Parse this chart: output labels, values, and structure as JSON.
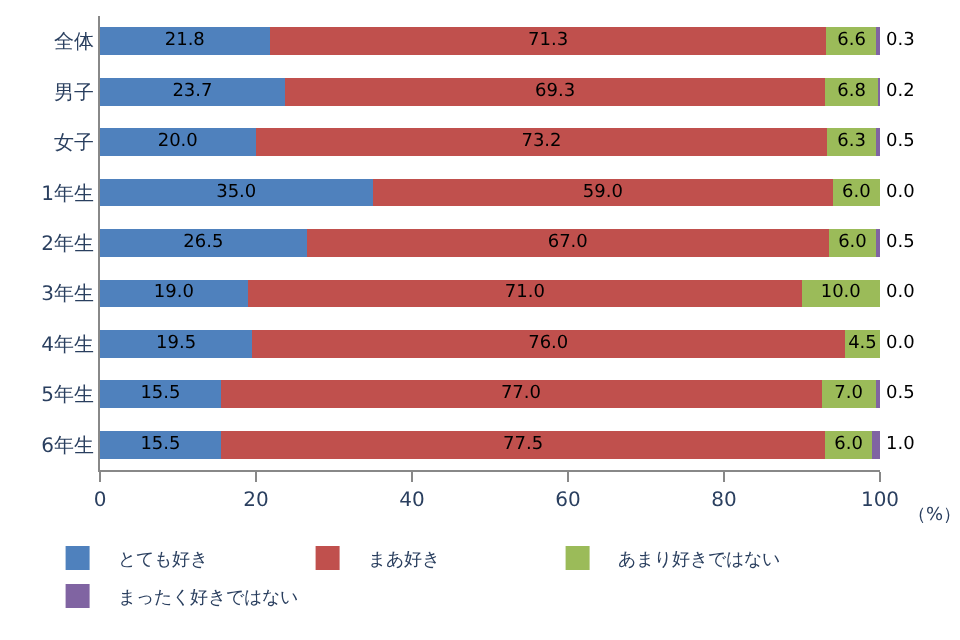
{
  "chart_data": {
    "type": "bar",
    "orientation": "horizontal",
    "stacked": true,
    "categories": [
      "全体",
      "男子",
      "女子",
      "1年生",
      "2年生",
      "3年生",
      "4年生",
      "5年生",
      "6年生"
    ],
    "series": [
      {
        "name": "とても好き",
        "color": "#4f81bd",
        "values": [
          21.8,
          23.7,
          20.0,
          35.0,
          26.5,
          19.0,
          19.5,
          15.5,
          15.5
        ],
        "value_labels": [
          "21.8",
          "23.7",
          "20.0",
          "35.0",
          "26.5",
          "19.0",
          "19.5",
          "15.5",
          "15.5"
        ]
      },
      {
        "name": "まあ好き",
        "color": "#c0504d",
        "values": [
          71.3,
          69.3,
          73.2,
          59.0,
          67.0,
          71.0,
          76.0,
          77.0,
          77.5
        ],
        "value_labels": [
          "71.3",
          "69.3",
          "73.2",
          "59.0",
          "67.0",
          "71.0",
          "76.0",
          "77.0",
          "77.5"
        ]
      },
      {
        "name": "あまり好きではない",
        "color": "#9bbb59",
        "values": [
          6.6,
          6.8,
          6.3,
          6.0,
          6.0,
          10.0,
          4.5,
          7.0,
          6.0
        ],
        "value_labels": [
          "6.6",
          "6.8",
          "6.3",
          "6.0",
          "6.0",
          "10.0",
          "4.5",
          "7.0",
          "6.0"
        ]
      },
      {
        "name": "まったく好きではない",
        "color": "#8064a2",
        "values": [
          0.3,
          0.2,
          0.5,
          0.0,
          0.5,
          0.0,
          0.0,
          0.5,
          1.0
        ],
        "value_labels": [
          "0.3",
          "0.2",
          "0.5",
          "0.0",
          "0.5",
          "0.0",
          "0.0",
          "0.5",
          "1.0"
        ]
      }
    ],
    "xlim": [
      0,
      100
    ],
    "xticks": [
      0,
      20,
      40,
      60,
      80,
      100
    ],
    "annotations": [
      "（%）"
    ],
    "legend": "bottom"
  }
}
